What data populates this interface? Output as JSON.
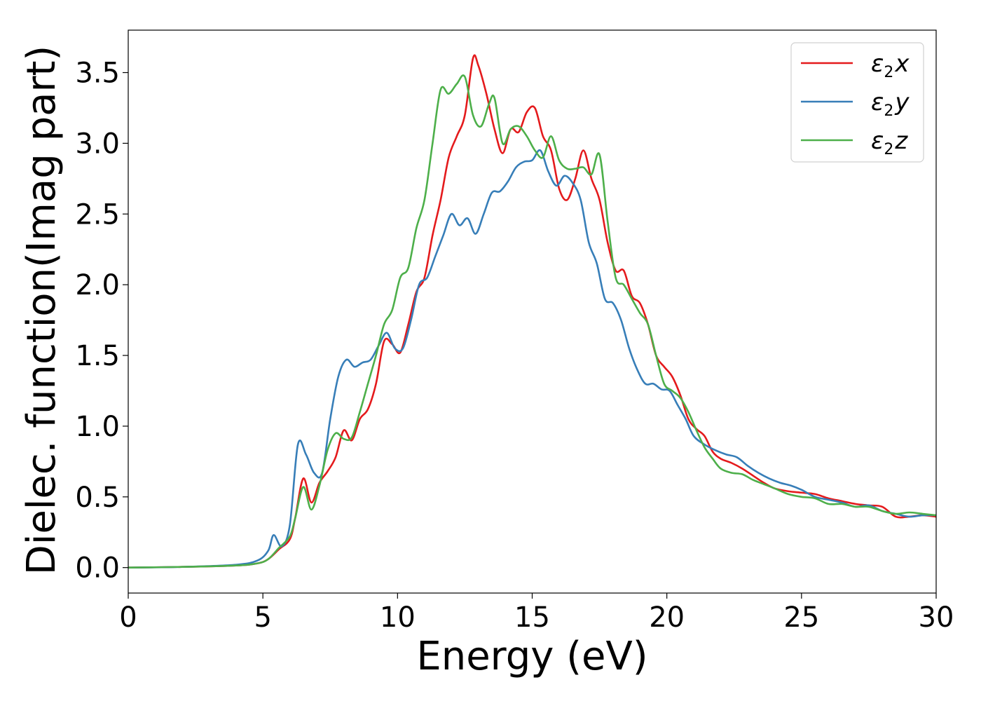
{
  "chart_data": {
    "type": "line",
    "xlabel": "Energy (eV)",
    "ylabel": "Dielec. function(Imag part)",
    "xlim": [
      0,
      30
    ],
    "ylim": [
      -0.18,
      3.8
    ],
    "xticks": [
      "0",
      "5",
      "10",
      "15",
      "20",
      "25",
      "30"
    ],
    "yticks": [
      "0.0",
      "0.5",
      "1.0",
      "1.5",
      "2.0",
      "2.5",
      "3.0",
      "3.5"
    ],
    "grid": false,
    "legend_position": "top-right",
    "series": [
      {
        "name": "ε2x",
        "legend_base": "ε",
        "legend_sub": "2",
        "legend_var": "x",
        "color": "#e41a1c",
        "x": [
          0,
          2,
          4,
          4.8,
          5.2,
          5.6,
          6.0,
          6.2,
          6.5,
          6.8,
          7.1,
          7.4,
          7.7,
          8.0,
          8.3,
          8.6,
          8.9,
          9.2,
          9.5,
          9.8,
          10.1,
          10.4,
          10.7,
          11.0,
          11.3,
          11.6,
          11.9,
          12.2,
          12.5,
          12.8,
          13.0,
          13.3,
          13.6,
          13.9,
          14.2,
          14.5,
          14.8,
          15.1,
          15.4,
          15.7,
          16.0,
          16.3,
          16.6,
          16.9,
          17.2,
          17.5,
          17.8,
          18.1,
          18.4,
          18.7,
          19.0,
          19.3,
          19.6,
          19.9,
          20.2,
          20.5,
          20.8,
          21.1,
          21.4,
          21.7,
          22.0,
          22.4,
          22.8,
          23.2,
          23.6,
          24.0,
          24.5,
          25.0,
          25.5,
          26.0,
          26.5,
          27.0,
          27.5,
          28.0,
          28.5,
          29.0,
          29.5,
          30.0
        ],
        "y": [
          0,
          0.005,
          0.015,
          0.03,
          0.06,
          0.13,
          0.2,
          0.35,
          0.63,
          0.46,
          0.6,
          0.68,
          0.78,
          0.97,
          0.9,
          1.05,
          1.12,
          1.3,
          1.6,
          1.58,
          1.52,
          1.72,
          1.95,
          2.05,
          2.35,
          2.6,
          2.9,
          3.05,
          3.2,
          3.6,
          3.55,
          3.35,
          3.1,
          2.93,
          3.1,
          3.08,
          3.22,
          3.25,
          3.05,
          2.95,
          2.68,
          2.6,
          2.75,
          2.95,
          2.75,
          2.6,
          2.3,
          2.1,
          2.1,
          1.92,
          1.87,
          1.72,
          1.5,
          1.42,
          1.35,
          1.22,
          1.05,
          0.98,
          0.93,
          0.82,
          0.77,
          0.74,
          0.7,
          0.65,
          0.6,
          0.56,
          0.54,
          0.53,
          0.52,
          0.49,
          0.47,
          0.45,
          0.44,
          0.43,
          0.36,
          0.36,
          0.37,
          0.36
        ]
      },
      {
        "name": "ε2y",
        "legend_base": "ε",
        "legend_sub": "2",
        "legend_var": "y",
        "color": "#377eb8",
        "x": [
          0,
          2,
          4,
          4.8,
          5.2,
          5.4,
          5.7,
          6.0,
          6.3,
          6.6,
          6.9,
          7.2,
          7.5,
          7.8,
          8.1,
          8.4,
          8.7,
          9.0,
          9.3,
          9.6,
          9.9,
          10.2,
          10.5,
          10.8,
          11.1,
          11.4,
          11.7,
          12.0,
          12.3,
          12.6,
          12.9,
          13.2,
          13.5,
          13.8,
          14.1,
          14.4,
          14.7,
          15.0,
          15.3,
          15.6,
          15.9,
          16.2,
          16.5,
          16.8,
          17.1,
          17.4,
          17.7,
          18.0,
          18.3,
          18.6,
          18.9,
          19.2,
          19.5,
          19.8,
          20.1,
          20.4,
          20.7,
          21.0,
          21.4,
          21.8,
          22.2,
          22.6,
          23.0,
          23.4,
          23.8,
          24.2,
          24.6,
          25.0,
          25.5,
          26.0,
          26.5,
          27.0,
          27.5,
          28.0,
          28.5,
          29.0,
          29.5,
          30.0
        ],
        "y": [
          0,
          0.005,
          0.02,
          0.05,
          0.12,
          0.23,
          0.15,
          0.3,
          0.87,
          0.8,
          0.67,
          0.67,
          1.05,
          1.35,
          1.47,
          1.42,
          1.45,
          1.47,
          1.57,
          1.66,
          1.55,
          1.55,
          1.75,
          2.0,
          2.05,
          2.2,
          2.35,
          2.5,
          2.42,
          2.47,
          2.36,
          2.5,
          2.65,
          2.66,
          2.73,
          2.83,
          2.87,
          2.88,
          2.95,
          2.8,
          2.7,
          2.77,
          2.72,
          2.6,
          2.3,
          2.15,
          1.9,
          1.87,
          1.75,
          1.55,
          1.4,
          1.3,
          1.3,
          1.26,
          1.25,
          1.15,
          1.05,
          0.93,
          0.87,
          0.83,
          0.8,
          0.78,
          0.72,
          0.67,
          0.63,
          0.6,
          0.58,
          0.55,
          0.5,
          0.48,
          0.46,
          0.43,
          0.44,
          0.4,
          0.38,
          0.36,
          0.37,
          0.37
        ]
      },
      {
        "name": "ε2z",
        "legend_base": "ε",
        "legend_sub": "2",
        "legend_var": "z",
        "color": "#4daf4a",
        "x": [
          0,
          2,
          4,
          4.8,
          5.2,
          5.6,
          6.0,
          6.2,
          6.5,
          6.8,
          7.1,
          7.4,
          7.7,
          8.0,
          8.3,
          8.6,
          8.9,
          9.2,
          9.5,
          9.8,
          10.1,
          10.4,
          10.7,
          11.0,
          11.3,
          11.6,
          11.9,
          12.2,
          12.5,
          12.8,
          13.1,
          13.4,
          13.6,
          13.9,
          14.2,
          14.5,
          14.8,
          15.1,
          15.4,
          15.7,
          16.0,
          16.3,
          16.6,
          16.9,
          17.2,
          17.5,
          17.8,
          18.1,
          18.4,
          18.7,
          19.0,
          19.3,
          19.6,
          19.9,
          20.2,
          20.5,
          20.8,
          21.1,
          21.4,
          21.7,
          22.0,
          22.4,
          22.8,
          23.2,
          23.6,
          24.0,
          24.5,
          25.0,
          25.5,
          26.0,
          26.5,
          27.0,
          27.5,
          28.0,
          28.5,
          29.0,
          29.5,
          30.0
        ],
        "y": [
          0,
          0.005,
          0.015,
          0.03,
          0.06,
          0.14,
          0.22,
          0.35,
          0.57,
          0.41,
          0.58,
          0.83,
          0.95,
          0.91,
          0.92,
          1.1,
          1.3,
          1.5,
          1.72,
          1.82,
          2.05,
          2.12,
          2.4,
          2.6,
          3.0,
          3.38,
          3.35,
          3.42,
          3.47,
          3.2,
          3.12,
          3.28,
          3.32,
          3.0,
          3.1,
          3.12,
          3.05,
          2.95,
          2.9,
          3.05,
          2.88,
          2.82,
          2.82,
          2.83,
          2.78,
          2.92,
          2.45,
          2.05,
          2.0,
          1.9,
          1.8,
          1.72,
          1.5,
          1.3,
          1.25,
          1.2,
          1.1,
          0.97,
          0.85,
          0.77,
          0.7,
          0.67,
          0.66,
          0.62,
          0.59,
          0.56,
          0.52,
          0.5,
          0.49,
          0.45,
          0.45,
          0.43,
          0.43,
          0.4,
          0.38,
          0.39,
          0.38,
          0.37
        ]
      }
    ]
  }
}
